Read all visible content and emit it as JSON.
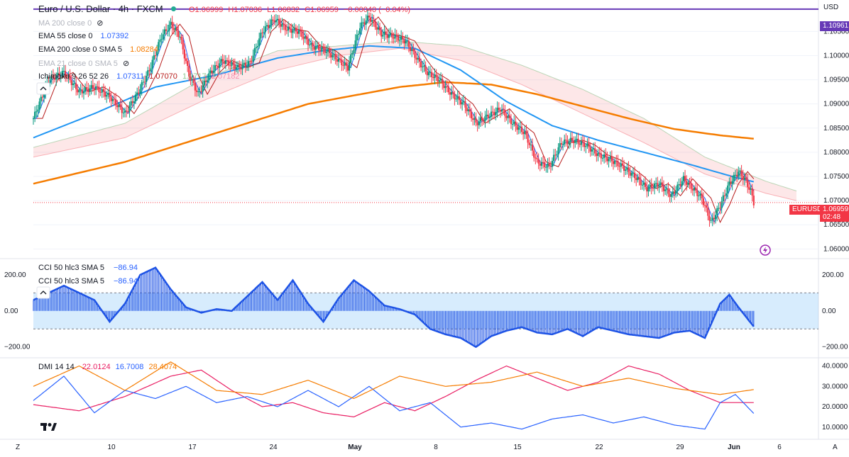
{
  "header": {
    "title": "Euro / U.S. Dollar · 4h · FXCM",
    "ohlc": {
      "o": "O1.06999",
      "h": "H1.07036",
      "l": "L1.06832",
      "c": "C1.06959",
      "chg": "−0.00040 (−0.04%)"
    },
    "currency": "USD"
  },
  "indicators": [
    {
      "label": "MA 200 close 0",
      "value": "",
      "color": "#b2b5be",
      "hidden": true
    },
    {
      "label": "EMA 55 close 0",
      "value": "1.07392",
      "color": "#2962ff"
    },
    {
      "label": "EMA 200 close 0 SMA 5",
      "value": "1.08284",
      "color": "#f57c00"
    },
    {
      "label": "EMA 21 close 0 SMA 5",
      "value": "",
      "color": "#b2b5be",
      "hidden": true
    },
    {
      "label": "Ichimoku 9 26 52 26",
      "values": [
        "1.07311",
        "1.07070",
        "1.0717",
        "1.07182"
      ],
      "colors": [
        "#2962ff",
        "#b71c1c",
        "#43a047",
        "#f48fb1"
      ]
    }
  ],
  "price_axis": {
    "ticks": [
      "1.10500",
      "1.10000",
      "1.09500",
      "1.09000",
      "1.08500",
      "1.08000",
      "1.07500",
      "1.07000",
      "1.06500",
      "1.06000"
    ],
    "tick_values": [
      1.105,
      1.1,
      1.095,
      1.09,
      1.085,
      1.08,
      1.075,
      1.07,
      1.065,
      1.06
    ],
    "range": [
      1.058,
      1.1115
    ],
    "hline_label": "1.10961",
    "hline_value": 1.10961,
    "symbol": "EURUSD",
    "last_price": "1.06959",
    "countdown": "02:48"
  },
  "time_axis": {
    "labels": [
      "10",
      "17",
      "24",
      "May",
      "8",
      "15",
      "22",
      "29",
      "Jun",
      "6"
    ],
    "left_btn": "Z",
    "right_btn": "A"
  },
  "cci": {
    "label": "CCI 50 hlc3 SMA 5",
    "value": "−86.94",
    "label2": "CCI 50 hlc3 SMA 5",
    "value2": "−86.94",
    "ticks": [
      "200.00",
      "0.00",
      "−200.00"
    ],
    "tick_values": [
      200,
      0,
      -200
    ],
    "band": [
      100,
      -100
    ],
    "range": [
      -260,
      290
    ]
  },
  "dmi": {
    "label": "DMI 14 14",
    "values": [
      "22.0124",
      "16.7008",
      "28.4074"
    ],
    "colors": [
      "#e91e63",
      "#2962ff",
      "#f57c00"
    ],
    "ticks": [
      "40.0000",
      "30.0000",
      "20.0000",
      "10.0000"
    ],
    "tick_values": [
      40,
      30,
      20,
      10
    ],
    "range": [
      4,
      44
    ]
  },
  "chart_data": {
    "type": "candlestick",
    "symbol": "EURUSD",
    "timeframe": "4h",
    "x_labels": [
      "10",
      "17",
      "24",
      "May",
      "8",
      "15",
      "22",
      "29",
      "Jun",
      "6"
    ],
    "price_path": [
      [
        0,
        1.087
      ],
      [
        10,
        1.095
      ],
      [
        20,
        1.0965
      ],
      [
        30,
        1.0925
      ],
      [
        40,
        1.0935
      ],
      [
        50,
        1.0915
      ],
      [
        60,
        1.088
      ],
      [
        68,
        1.092
      ],
      [
        76,
        1.097
      ],
      [
        84,
        1.104
      ],
      [
        90,
        1.1065
      ],
      [
        96,
        1.104
      ],
      [
        102,
        1.096
      ],
      [
        108,
        1.092
      ],
      [
        116,
        1.0965
      ],
      [
        124,
        1.099
      ],
      [
        134,
        1.0975
      ],
      [
        142,
        1.0985
      ],
      [
        150,
        1.105
      ],
      [
        158,
        1.1075
      ],
      [
        166,
        1.1055
      ],
      [
        174,
        1.105
      ],
      [
        182,
        1.102
      ],
      [
        192,
        1.101
      ],
      [
        200,
        1.099
      ],
      [
        206,
        1.0975
      ],
      [
        214,
        1.106
      ],
      [
        220,
        1.108
      ],
      [
        228,
        1.1045
      ],
      [
        236,
        1.104
      ],
      [
        244,
        1.103
      ],
      [
        252,
        1.099
      ],
      [
        258,
        1.0965
      ],
      [
        266,
        1.095
      ],
      [
        274,
        1.092
      ],
      [
        282,
        1.09
      ],
      [
        290,
        1.086
      ],
      [
        298,
        1.0875
      ],
      [
        306,
        1.089
      ],
      [
        314,
        1.086
      ],
      [
        322,
        1.084
      ],
      [
        330,
        1.078
      ],
      [
        338,
        1.077
      ],
      [
        346,
        1.082
      ],
      [
        354,
        1.0825
      ],
      [
        362,
        1.0815
      ],
      [
        370,
        1.0795
      ],
      [
        378,
        1.0785
      ],
      [
        386,
        1.077
      ],
      [
        394,
        1.075
      ],
      [
        402,
        1.0725
      ],
      [
        410,
        1.0735
      ],
      [
        418,
        1.071
      ],
      [
        426,
        1.0745
      ],
      [
        432,
        1.0725
      ],
      [
        438,
        1.0705
      ],
      [
        444,
        1.0655
      ],
      [
        450,
        1.069
      ],
      [
        456,
        1.0735
      ],
      [
        462,
        1.076
      ],
      [
        466,
        1.0745
      ],
      [
        470,
        1.072
      ],
      [
        472,
        1.0696
      ]
    ],
    "ema55": [
      [
        0,
        1.083
      ],
      [
        40,
        1.088
      ],
      [
        80,
        1.0935
      ],
      [
        120,
        1.096
      ],
      [
        160,
        1.0995
      ],
      [
        190,
        1.101
      ],
      [
        220,
        1.102
      ],
      [
        250,
        1.1015
      ],
      [
        280,
        1.097
      ],
      [
        310,
        1.0905
      ],
      [
        340,
        1.0855
      ],
      [
        370,
        1.0825
      ],
      [
        400,
        1.08
      ],
      [
        430,
        1.0775
      ],
      [
        460,
        1.0748
      ],
      [
        472,
        1.0739
      ]
    ],
    "ema200": [
      [
        0,
        1.0735
      ],
      [
        60,
        1.078
      ],
      [
        120,
        1.084
      ],
      [
        180,
        1.09
      ],
      [
        240,
        1.0935
      ],
      [
        270,
        1.0945
      ],
      [
        300,
        1.094
      ],
      [
        330,
        1.092
      ],
      [
        360,
        1.0895
      ],
      [
        390,
        1.087
      ],
      [
        420,
        1.0848
      ],
      [
        450,
        1.0835
      ],
      [
        472,
        1.0828
      ]
    ],
    "cloud_upper": [
      [
        0,
        1.081
      ],
      [
        60,
        1.086
      ],
      [
        110,
        1.095
      ],
      [
        160,
        1.101
      ],
      [
        200,
        1.102
      ],
      [
        240,
        1.103
      ],
      [
        280,
        1.102
      ],
      [
        320,
        1.098
      ],
      [
        360,
        1.093
      ],
      [
        400,
        1.087
      ],
      [
        440,
        1.079
      ],
      [
        480,
        1.074
      ],
      [
        500,
        1.072
      ]
    ],
    "cloud_lower": [
      [
        0,
        1.079
      ],
      [
        60,
        1.083
      ],
      [
        110,
        1.0905
      ],
      [
        160,
        1.097
      ],
      [
        200,
        1.1
      ],
      [
        240,
        1.1015
      ],
      [
        280,
        1.099
      ],
      [
        320,
        1.094
      ],
      [
        360,
        1.088
      ],
      [
        400,
        1.082
      ],
      [
        440,
        1.0755
      ],
      [
        480,
        1.0715
      ],
      [
        500,
        1.07
      ]
    ],
    "cci_path": [
      [
        0,
        60
      ],
      [
        20,
        140
      ],
      [
        40,
        60
      ],
      [
        50,
        -60
      ],
      [
        60,
        40
      ],
      [
        70,
        200
      ],
      [
        80,
        240
      ],
      [
        90,
        120
      ],
      [
        100,
        20
      ],
      [
        110,
        -10
      ],
      [
        120,
        10
      ],
      [
        130,
        0
      ],
      [
        140,
        80
      ],
      [
        150,
        160
      ],
      [
        160,
        60
      ],
      [
        170,
        170
      ],
      [
        180,
        40
      ],
      [
        190,
        -60
      ],
      [
        200,
        70
      ],
      [
        210,
        170
      ],
      [
        220,
        110
      ],
      [
        230,
        30
      ],
      [
        240,
        10
      ],
      [
        250,
        -20
      ],
      [
        260,
        -100
      ],
      [
        270,
        -130
      ],
      [
        280,
        -150
      ],
      [
        290,
        -200
      ],
      [
        300,
        -140
      ],
      [
        310,
        -110
      ],
      [
        320,
        -90
      ],
      [
        330,
        -120
      ],
      [
        340,
        -130
      ],
      [
        350,
        -100
      ],
      [
        360,
        -140
      ],
      [
        370,
        -90
      ],
      [
        380,
        -110
      ],
      [
        390,
        -130
      ],
      [
        400,
        -140
      ],
      [
        410,
        -150
      ],
      [
        420,
        -120
      ],
      [
        430,
        -110
      ],
      [
        440,
        -150
      ],
      [
        450,
        40
      ],
      [
        456,
        90
      ],
      [
        462,
        20
      ],
      [
        472,
        -86.94
      ]
    ],
    "adx_path": [
      [
        0,
        30
      ],
      [
        30,
        40
      ],
      [
        60,
        28
      ],
      [
        90,
        42
      ],
      [
        120,
        28
      ],
      [
        150,
        26
      ],
      [
        180,
        33
      ],
      [
        210,
        24
      ],
      [
        240,
        35
      ],
      [
        270,
        30
      ],
      [
        300,
        32
      ],
      [
        330,
        37
      ],
      [
        360,
        30
      ],
      [
        390,
        34
      ],
      [
        420,
        29
      ],
      [
        450,
        26
      ],
      [
        472,
        28.41
      ]
    ],
    "diplus_path": [
      [
        0,
        23
      ],
      [
        20,
        35
      ],
      [
        40,
        17
      ],
      [
        60,
        28
      ],
      [
        80,
        24
      ],
      [
        100,
        30
      ],
      [
        120,
        22
      ],
      [
        140,
        25
      ],
      [
        160,
        20
      ],
      [
        180,
        28
      ],
      [
        200,
        20
      ],
      [
        220,
        30
      ],
      [
        240,
        18
      ],
      [
        260,
        22
      ],
      [
        280,
        10
      ],
      [
        300,
        12
      ],
      [
        320,
        9
      ],
      [
        340,
        14
      ],
      [
        360,
        16
      ],
      [
        380,
        12
      ],
      [
        400,
        15
      ],
      [
        420,
        11
      ],
      [
        440,
        9
      ],
      [
        450,
        22
      ],
      [
        460,
        26
      ],
      [
        472,
        16.7
      ]
    ],
    "diminus_path": [
      [
        0,
        21
      ],
      [
        30,
        18
      ],
      [
        60,
        25
      ],
      [
        90,
        35
      ],
      [
        110,
        38
      ],
      [
        130,
        28
      ],
      [
        150,
        20
      ],
      [
        170,
        22
      ],
      [
        190,
        17
      ],
      [
        210,
        15
      ],
      [
        230,
        22
      ],
      [
        250,
        18
      ],
      [
        270,
        25
      ],
      [
        290,
        33
      ],
      [
        310,
        40
      ],
      [
        330,
        34
      ],
      [
        350,
        28
      ],
      [
        370,
        32
      ],
      [
        390,
        40
      ],
      [
        410,
        36
      ],
      [
        430,
        28
      ],
      [
        450,
        22
      ],
      [
        472,
        22.01
      ]
    ]
  }
}
